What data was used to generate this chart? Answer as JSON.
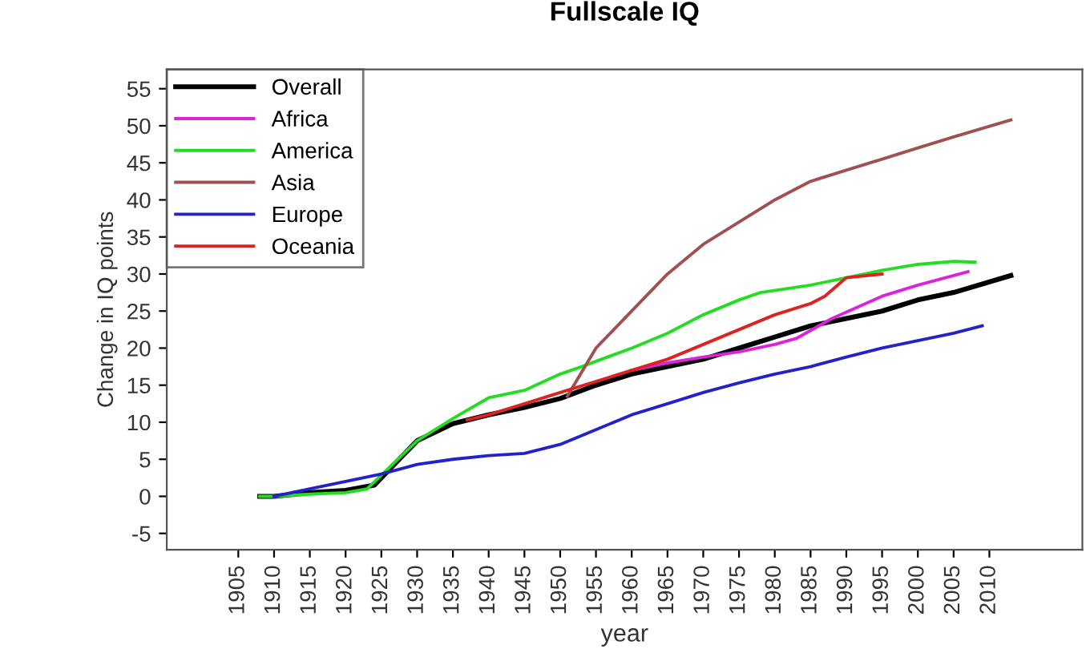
{
  "chart_data": {
    "type": "line",
    "title": "Fullscale IQ",
    "xlabel": "year",
    "ylabel": "Change in IQ points",
    "xlim": [
      1895,
      2023
    ],
    "ylim": [
      -7.2,
      57.6
    ],
    "xticks": [
      1905,
      1910,
      1915,
      1920,
      1925,
      1930,
      1935,
      1940,
      1945,
      1950,
      1955,
      1960,
      1965,
      1970,
      1975,
      1980,
      1985,
      1990,
      1995,
      2000,
      2005,
      2010
    ],
    "yticks": [
      -5,
      0,
      5,
      10,
      15,
      20,
      25,
      30,
      35,
      40,
      45,
      50,
      55
    ],
    "grid": false,
    "legend": "top left",
    "marker": "none",
    "line_style": "solid",
    "series": [
      {
        "name": "Overall",
        "color": "#000000",
        "x": [
          1908,
          1910,
          1915,
          1920,
          1924,
          1930,
          1935,
          1940,
          1945,
          1950,
          1955,
          1960,
          1965,
          1970,
          1975,
          1980,
          1985,
          1990,
          1995,
          2000,
          2005,
          2013
        ],
        "values": [
          0,
          0,
          0.5,
          0.8,
          1.5,
          7.5,
          9.8,
          11,
          12,
          13.2,
          15,
          16.5,
          17.5,
          18.5,
          20,
          21.5,
          23,
          24,
          25,
          26.5,
          27.5,
          29.8
        ]
      },
      {
        "name": "Africa",
        "color": "#dd22dd",
        "x": [
          1960,
          1965,
          1970,
          1975,
          1980,
          1983,
          1988,
          1995,
          2000,
          2007
        ],
        "values": [
          17,
          18,
          18.8,
          19.5,
          20.5,
          21.3,
          24,
          27,
          28.5,
          30.3
        ]
      },
      {
        "name": "America",
        "color": "#22dd22",
        "x": [
          1908,
          1910,
          1915,
          1920,
          1923,
          1930,
          1935,
          1940,
          1945,
          1950,
          1953,
          1960,
          1965,
          1970,
          1975,
          1978,
          1985,
          1990,
          1995,
          2000,
          2005,
          2008
        ],
        "values": [
          0,
          0,
          0.3,
          0.5,
          1,
          7.5,
          10.5,
          13.3,
          14.3,
          16.5,
          17.5,
          20,
          22,
          24.5,
          26.5,
          27.5,
          28.5,
          29.5,
          30.5,
          31.3,
          31.7,
          31.6
        ]
      },
      {
        "name": "Asia",
        "color": "#a05050",
        "x": [
          1951,
          1955,
          1960,
          1965,
          1970,
          1975,
          1980,
          1985,
          1990,
          1995,
          2000,
          2005,
          2013
        ],
        "values": [
          13.5,
          20,
          25,
          30,
          34,
          37,
          40,
          42.5,
          44,
          45.5,
          47,
          48.5,
          50.8
        ]
      },
      {
        "name": "Europe",
        "color": "#2222cc",
        "x": [
          1910,
          1915,
          1920,
          1925,
          1930,
          1935,
          1940,
          1945,
          1950,
          1955,
          1960,
          1965,
          1970,
          1975,
          1980,
          1985,
          1990,
          1995,
          2000,
          2005,
          2009
        ],
        "values": [
          0,
          1,
          2,
          3,
          4.3,
          5,
          5.5,
          5.8,
          7,
          9,
          11,
          12.5,
          14,
          15.3,
          16.5,
          17.5,
          18.8,
          20,
          21,
          22,
          23
        ]
      },
      {
        "name": "Oceania",
        "color": "#dd2222",
        "x": [
          1937,
          1940,
          1945,
          1950,
          1955,
          1960,
          1965,
          1970,
          1975,
          1980,
          1985,
          1987,
          1990,
          1995
        ],
        "values": [
          10.3,
          11,
          12.5,
          14,
          15.5,
          17,
          18.5,
          20.5,
          22.5,
          24.5,
          26,
          27,
          29.5,
          30
        ]
      }
    ]
  }
}
